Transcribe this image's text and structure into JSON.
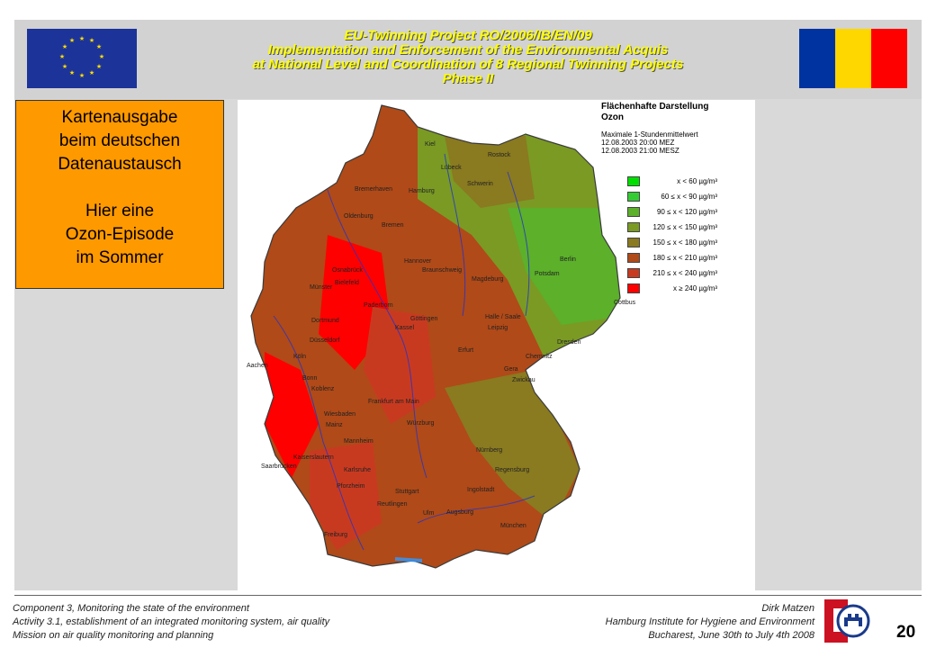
{
  "header": {
    "line1": "EU-Twinning Project RO/2006/IB/EN/09",
    "line2": "Implementation and Enforcement of the Environmental Acquis",
    "line3": "at National Level and Coordination of 8 Regional Twinning Projects",
    "line4": "Phase II"
  },
  "callout": {
    "lines1": [
      "Kartenausgabe",
      "beim deutschen",
      "Datenaustausch"
    ],
    "lines2": [
      "Hier eine",
      "Ozon-Episode",
      "im Sommer"
    ]
  },
  "map": {
    "title1": "Flächenhafte Darstellung",
    "title2": "Ozon",
    "meta": [
      "Maximale 1-Stundenmittelwert",
      "12.08.2003 20:00 MEZ",
      "12.08.2003 21:00 MESZ"
    ],
    "legend": [
      {
        "label": "x < 60 µg/m³",
        "color": "#00e000"
      },
      {
        "label": "60 ≤ x < 90 µg/m³",
        "color": "#33cc33"
      },
      {
        "label": "90 ≤ x < 120 µg/m³",
        "color": "#5cb02a"
      },
      {
        "label": "120 ≤ x < 150 µg/m³",
        "color": "#7a9a24"
      },
      {
        "label": "150 ≤ x < 180 µg/m³",
        "color": "#8a7a20"
      },
      {
        "label": "180 ≤ x < 210 µg/m³",
        "color": "#b04a18"
      },
      {
        "label": "210 ≤ x < 240 µg/m³",
        "color": "#c83a20"
      },
      {
        "label": "x ≥ 240 µg/m³",
        "color": "#ff0000"
      }
    ],
    "cities": [
      "Kiel",
      "Rostock",
      "Lübeck",
      "Schwerin",
      "Bremerhaven",
      "Hamburg",
      "Oldenburg",
      "Bremen",
      "Hannover",
      "Braunschweig",
      "Berlin",
      "Potsdam",
      "Osnabrück",
      "Münster",
      "Bielefeld",
      "Magdeburg",
      "Paderborn",
      "Dortmund",
      "Göttingen",
      "Halle / Saale",
      "Leipzig",
      "Cottbus",
      "Düsseldorf",
      "Kassel",
      "Erfurt",
      "Dresden",
      "Aachen",
      "Köln",
      "Chemnitz",
      "Gera",
      "Zwickau",
      "Bonn",
      "Koblenz",
      "Frankfurt am Main",
      "Wiesbaden",
      "Mainz",
      "Würzburg",
      "Mannheim",
      "Nürnberg",
      "Kaiserslautern",
      "Saarbrücken",
      "Karlsruhe",
      "Regensburg",
      "Pforzheim",
      "Stuttgart",
      "Ingolstadt",
      "Reutlingen",
      "Ulm",
      "Augsburg",
      "München",
      "Freiburg"
    ]
  },
  "footer": {
    "left": [
      "Component 3, Monitoring the state of the environment",
      "Activity 3.1, establishment of an integrated monitoring system, air quality",
      "Mission on air quality monitoring and planning"
    ],
    "right_name": "Dirk Matzen",
    "right_inst": "Hamburg Institute for Hygiene and Environment",
    "right_date": "Bucharest, June 30th to July 4th 2008",
    "page": "20"
  },
  "colors": {
    "title": "#ffff00",
    "callout": "#ff9900",
    "eu_blue": "#1c3399",
    "ro": [
      "#0033a0",
      "#ffd700",
      "#ff0000"
    ]
  }
}
